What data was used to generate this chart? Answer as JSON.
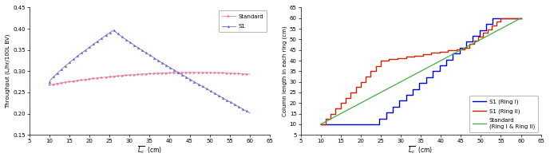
{
  "left": {
    "xlabel": "$\\overline{L_c}$  (cm)",
    "ylabel": "Throughput (L/hr/100L BV)",
    "xlim": [
      5,
      65
    ],
    "ylim": [
      0.15,
      0.45
    ],
    "xticks": [
      5,
      10,
      15,
      20,
      25,
      30,
      35,
      40,
      45,
      50,
      55,
      60,
      65
    ],
    "yticks": [
      0.15,
      0.2,
      0.25,
      0.3,
      0.35,
      0.4,
      0.45
    ],
    "standard_color": "#e87aa0",
    "s1_color": "#7070c8",
    "legend_labels": [
      "Standard",
      "S1"
    ],
    "legend_loc": "upper right"
  },
  "right": {
    "xlabel": "$\\overline{L_c}$  (cm)",
    "ylabel": "Column length in each ring (cm)",
    "xlim": [
      5,
      65
    ],
    "ylim": [
      5,
      65
    ],
    "xticks": [
      5,
      10,
      15,
      20,
      25,
      30,
      35,
      40,
      45,
      50,
      55,
      60,
      65
    ],
    "yticks": [
      5,
      10,
      15,
      20,
      25,
      30,
      35,
      40,
      45,
      50,
      55,
      60,
      65
    ],
    "ring1_color": "#0000cc",
    "ring2_color": "#cc2200",
    "standard_color": "#44aa44",
    "legend_labels": [
      "S1 (Ring I)",
      "S1 (Ring II)",
      "Standard\n(Ring I & Ring II)"
    ],
    "legend_loc": "lower right"
  }
}
